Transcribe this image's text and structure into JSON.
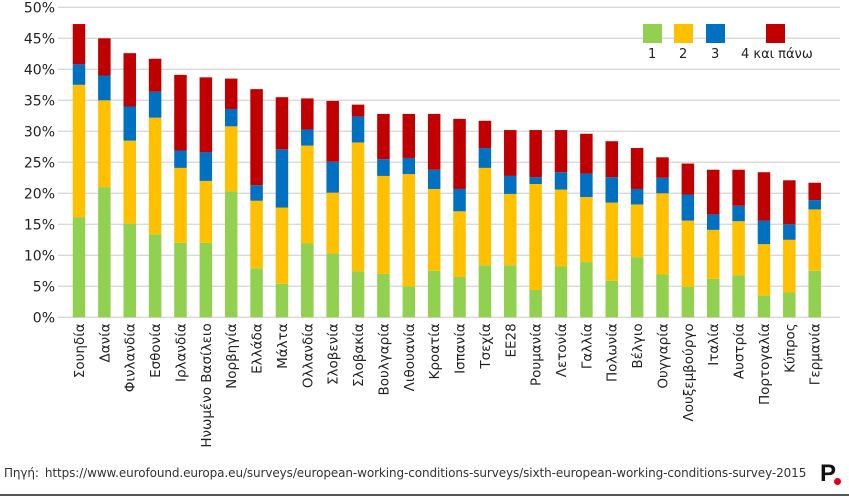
{
  "chart_data": {
    "type": "bar",
    "stacked": true,
    "title": "",
    "xlabel": "",
    "ylabel": "",
    "ylim": [
      0,
      50
    ],
    "yticks": [
      "0%",
      "5%",
      "10%",
      "15%",
      "20%",
      "25%",
      "30%",
      "35%",
      "40%",
      "45%",
      "50%"
    ],
    "grid": true,
    "legend_position": "top-right",
    "categories": [
      "Σουηδία",
      "Δανία",
      "Φινλανδία",
      "Εσθονία",
      "Ιρλανδία",
      "Ηνωμένο Βασίλειο",
      "Νορβηγία",
      "Ελλάδα",
      "Μάλτα",
      "Ολλανδία",
      "Σλοβενία",
      "Σλοβακία",
      "Βουλγαρία",
      "Λιθουανία",
      "Κροατία",
      "Ισπανία",
      "Τσεχία",
      "ΕΕ28",
      "Ρουμανία",
      "Λετονία",
      "Γαλλία",
      "Πολωνία",
      "Βέλγιο",
      "Ουγγαρία",
      "Λουξεμβούργο",
      "Ιταλία",
      "Αυστρία",
      "Πορτογαλία",
      "Κύπρος",
      "Γερμανία"
    ],
    "series": [
      {
        "name": "1",
        "color": "#92d050",
        "values": [
          16.1,
          21.0,
          15.1,
          13.4,
          12.0,
          12.0,
          20.3,
          7.9,
          5.4,
          11.9,
          10.3,
          7.4,
          7.0,
          5.0,
          7.5,
          6.5,
          8.4,
          8.4,
          4.4,
          8.2,
          8.9,
          5.9,
          9.7,
          6.9,
          4.9,
          6.2,
          6.8,
          3.5,
          4.0,
          7.5
        ]
      },
      {
        "name": "2",
        "color": "#ffc000",
        "values": [
          21.4,
          14.0,
          13.4,
          18.8,
          12.1,
          10.0,
          10.5,
          10.9,
          12.3,
          15.8,
          9.8,
          20.8,
          15.8,
          18.1,
          13.2,
          10.6,
          15.7,
          11.5,
          17.1,
          12.4,
          10.5,
          12.6,
          8.5,
          13.1,
          10.7,
          7.9,
          8.7,
          8.3,
          8.5,
          9.9
        ]
      },
      {
        "name": "3",
        "color": "#0070c0",
        "values": [
          3.3,
          4.0,
          5.5,
          4.2,
          2.8,
          4.6,
          2.8,
          2.5,
          9.4,
          2.6,
          5.0,
          4.2,
          2.7,
          2.6,
          3.1,
          3.6,
          3.2,
          2.9,
          1.1,
          2.8,
          3.8,
          4.1,
          2.5,
          2.5,
          4.2,
          2.5,
          2.5,
          3.8,
          2.5,
          1.5
        ]
      },
      {
        "name": "4 και πάνω",
        "color": "#c00000",
        "values": [
          6.5,
          6.0,
          8.6,
          5.3,
          12.2,
          12.1,
          4.9,
          15.5,
          8.4,
          5.0,
          9.8,
          1.9,
          7.3,
          7.1,
          9.0,
          11.3,
          4.4,
          7.4,
          7.6,
          6.8,
          6.4,
          5.8,
          6.6,
          3.3,
          5.0,
          7.2,
          5.8,
          7.8,
          7.1,
          2.8
        ]
      }
    ]
  },
  "footer": {
    "source_label": "Πηγή:",
    "source_url": "https://www.eurofound.europa.eu/surveys/european-working-conditions-surveys/sixth-european-working-conditions-survey-2015",
    "logo_text": "P"
  }
}
